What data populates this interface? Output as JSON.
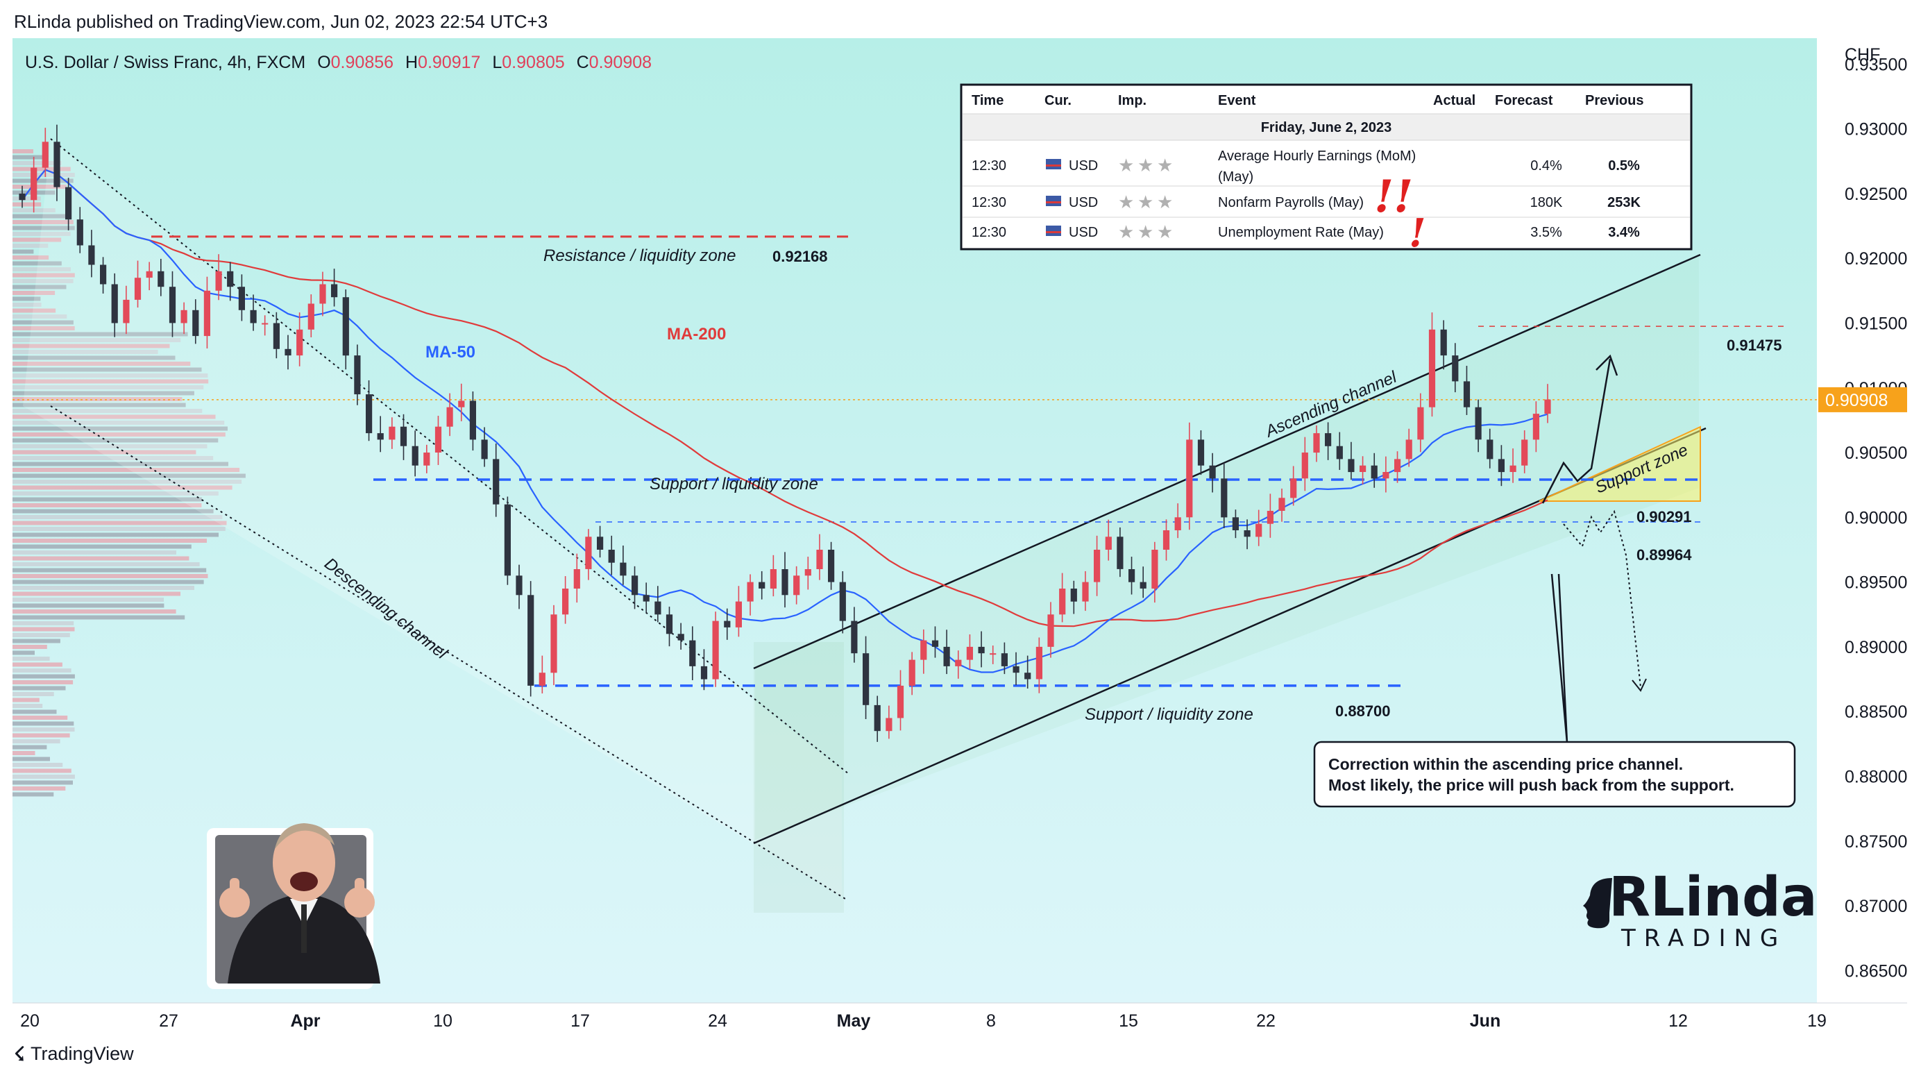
{
  "header": {
    "published": "RLinda published on TradingView.com, Jun 02, 2023 22:54 UTC+3"
  },
  "footer": {
    "brand": "TradingView",
    "logo_glyph": "☇"
  },
  "symbol": {
    "title": "U.S. Dollar / Swiss Franc, 4h, FXCM",
    "o_label": "O",
    "o": "0.90856",
    "h_label": "H",
    "h": "0.90917",
    "l_label": "L",
    "l": "0.90805",
    "c_label": "C",
    "c": "0.90908"
  },
  "colors": {
    "bg_top": "#b7efe8",
    "bg_bottom": "#ddf6fa",
    "up": "#e34a59",
    "down": "#2f3440",
    "ma50": "#2962ff",
    "ma200": "#e03b3b",
    "price_tag": "#f7a21b",
    "support": "#2962ff",
    "resistance": "#e03b3b"
  },
  "chart_data": {
    "type": "candlestick",
    "title": "U.S. Dollar / Swiss Franc, 4h, FXCM",
    "currency": "CHF",
    "last_price": "0.90908",
    "y_range": [
      0.8625,
      0.937
    ],
    "y_ticks": [
      "0.93500",
      "0.93000",
      "0.92500",
      "0.92000",
      "0.91500",
      "0.91000",
      "0.90500",
      "0.90000",
      "0.89500",
      "0.89000",
      "0.88500",
      "0.88000",
      "0.87500",
      "0.87000",
      "0.86500"
    ],
    "x_ticks": [
      {
        "label": "20",
        "bold": false
      },
      {
        "label": "27",
        "bold": false
      },
      {
        "label": "Apr",
        "bold": true
      },
      {
        "label": "10",
        "bold": false
      },
      {
        "label": "17",
        "bold": false
      },
      {
        "label": "24",
        "bold": false
      },
      {
        "label": "May",
        "bold": true
      },
      {
        "label": "8",
        "bold": false
      },
      {
        "label": "15",
        "bold": false
      },
      {
        "label": "22",
        "bold": false
      },
      {
        "label": "Jun",
        "bold": true
      },
      {
        "label": "12",
        "bold": false
      },
      {
        "label": "19",
        "bold": false
      }
    ],
    "candles_close": [
      0.9245,
      0.927,
      0.929,
      0.9255,
      0.923,
      0.921,
      0.9195,
      0.918,
      0.915,
      0.9168,
      0.9185,
      0.919,
      0.9178,
      0.915,
      0.916,
      0.914,
      0.9175,
      0.919,
      0.9178,
      0.916,
      0.915,
      0.915,
      0.913,
      0.9125,
      0.9145,
      0.9165,
      0.918,
      0.917,
      0.9125,
      0.9095,
      0.9065,
      0.906,
      0.907,
      0.9055,
      0.904,
      0.905,
      0.907,
      0.9085,
      0.909,
      0.906,
      0.9045,
      0.901,
      0.8955,
      0.894,
      0.887,
      0.888,
      0.8925,
      0.8945,
      0.896,
      0.8985,
      0.8975,
      0.8965,
      0.8955,
      0.894,
      0.8935,
      0.8925,
      0.891,
      0.8905,
      0.8885,
      0.8875,
      0.892,
      0.8915,
      0.8935,
      0.895,
      0.8945,
      0.896,
      0.894,
      0.8955,
      0.896,
      0.8975,
      0.895,
      0.892,
      0.8895,
      0.8855,
      0.8835,
      0.8845,
      0.887,
      0.889,
      0.8905,
      0.89,
      0.8885,
      0.889,
      0.89,
      0.8895,
      0.8895,
      0.8885,
      0.888,
      0.8875,
      0.89,
      0.8925,
      0.8945,
      0.8935,
      0.895,
      0.8975,
      0.8985,
      0.896,
      0.895,
      0.8945,
      0.8975,
      0.899,
      0.9,
      0.906,
      0.904,
      0.903,
      0.9,
      0.899,
      0.8985,
      0.8995,
      0.9005,
      0.9015,
      0.903,
      0.905,
      0.9065,
      0.9055,
      0.9045,
      0.9035,
      0.904,
      0.903,
      0.9035,
      0.9045,
      0.906,
      0.9085,
      0.9145,
      0.9125,
      0.9105,
      0.9085,
      0.906,
      0.9045,
      0.9035,
      0.904,
      0.906,
      0.908,
      0.9091
    ],
    "ma50_label": "MA-50",
    "ma200_label": "MA-200",
    "levels": [
      {
        "name": "resistance",
        "value": 0.92168,
        "label": "0.92168"
      },
      {
        "name": "high",
        "value": 0.91475,
        "label": "0.91475"
      },
      {
        "name": "support",
        "value": 0.90291,
        "label": "0.90291"
      },
      {
        "name": "minor",
        "value": 0.89964,
        "label": "0.89964"
      },
      {
        "name": "low-support",
        "value": 0.887,
        "label": "0.88700"
      }
    ],
    "annotations": {
      "resistance": "Resistance / liquidity zone",
      "support_mid": "Support / liquidity zone",
      "support_low": "Support / liquidity zone",
      "ascending": "Ascending channel",
      "descending": "Descending channel",
      "support_zone": "Support zone",
      "callout_line1": "Correction within the ascending price channel.",
      "callout_line2": "Most likely, the price will push back from the support."
    }
  },
  "calendar": {
    "headers": [
      "Time",
      "Cur.",
      "Imp.",
      "Event",
      "Actual",
      "Forecast",
      "Previous"
    ],
    "date": "Friday, June 2, 2023",
    "rows": [
      {
        "time": "12:30",
        "cur": "USD",
        "event": "Average Hourly Earnings (MoM)",
        "event2": "(May)",
        "actual": "",
        "forecast": "0.4%",
        "previous": "0.5%"
      },
      {
        "time": "12:30",
        "cur": "USD",
        "event": "Nonfarm Payrolls (May)",
        "event2": "",
        "actual": "",
        "forecast": "180K",
        "previous": "253K"
      },
      {
        "time": "12:30",
        "cur": "USD",
        "event": "Unemployment Rate (May)",
        "event2": "",
        "actual": "",
        "forecast": "3.5%",
        "previous": "3.4%"
      }
    ],
    "marks": [
      "!!",
      "!"
    ]
  },
  "branding": {
    "logo_main": "RLinda",
    "logo_sub": "TRADING"
  },
  "sticker": {
    "description": "thumbs-up-man"
  }
}
